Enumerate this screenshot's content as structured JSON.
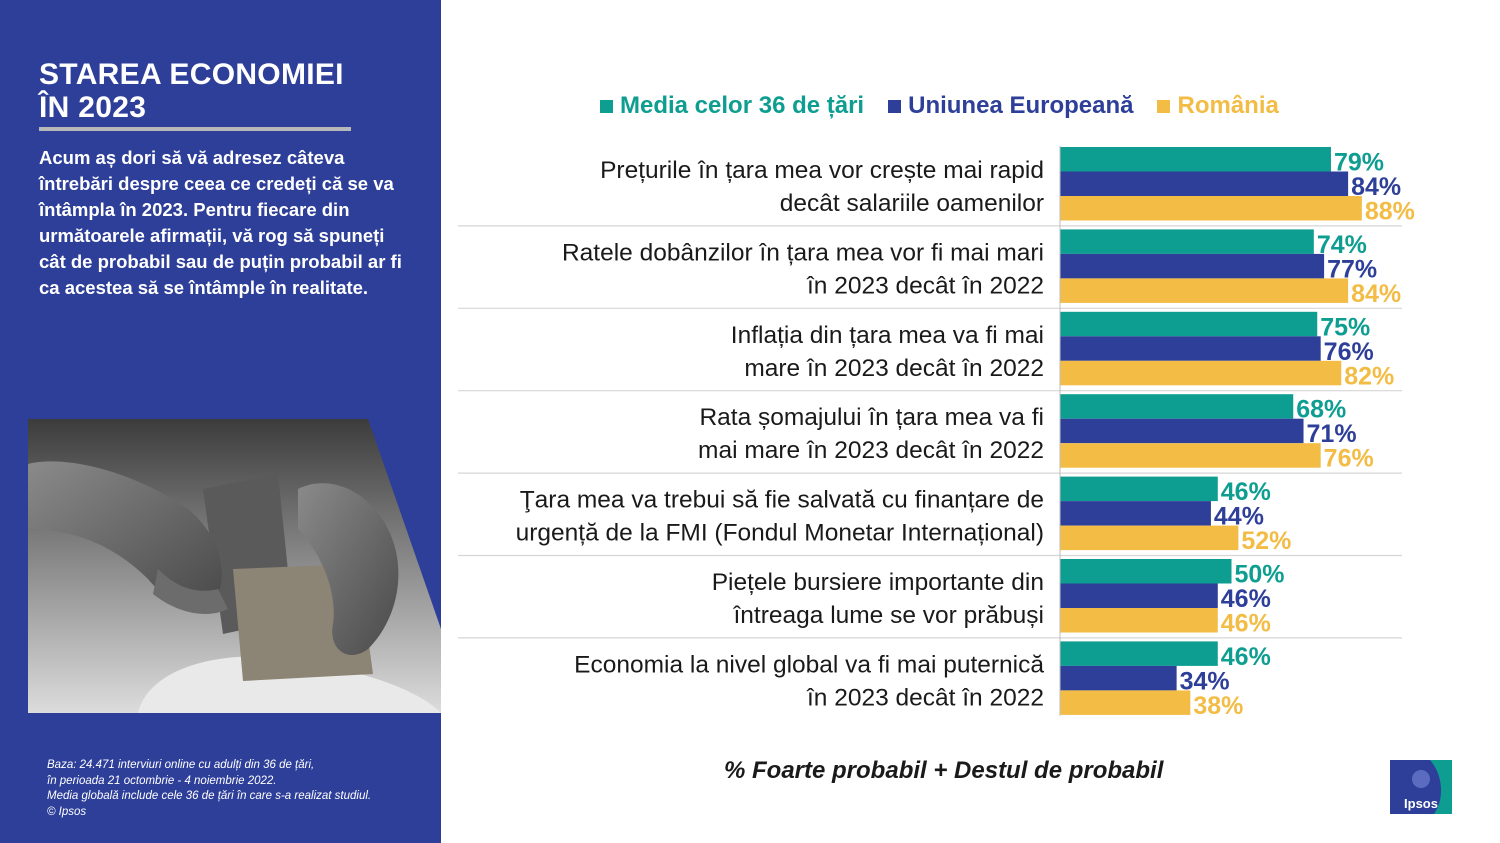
{
  "panel": {
    "title_line1": "STAREA ECONOMIEI",
    "title_line2": "ÎN 2023",
    "intro": "Acum aș dori să vă adresez câteva întrebări despre ceea ce credeți că se va întâmpla în 2023. Pentru fiecare din următoarele afirmații, vă rog să spuneți cât de probabil sau de puțin probabil ar fi ca acestea să se întâmple în realitate.",
    "footnote_line1": "Baza: 24.471 interviuri online cu adulți din 36 de țări,",
    "footnote_line2": "în perioada 21 octombrie - 4 noiembrie 2022.",
    "footnote_line3": "Media globală include cele 36 de țări în care s-a realizat studiul.",
    "footnote_line4": "© Ipsos"
  },
  "legend": [
    {
      "label": "Media celor 36 de țări",
      "color": "#0e9e91"
    },
    {
      "label": "Uniunea Europeană",
      "color": "#2e3f99"
    },
    {
      "label": "România",
      "color": "#f2bc45"
    }
  ],
  "subtitle": "% Foarte probabil + Destul de probabil",
  "logo_text": "Ipsos",
  "chart_data": {
    "type": "bar",
    "orientation": "horizontal",
    "categories": [
      [
        "Prețurile în țara mea vor crește mai rapid",
        "decât salariile oamenilor"
      ],
      [
        "Ratele dobânzilor în țara mea vor fi mai mari",
        "în 2023 decât în 2022"
      ],
      [
        "Inflația din țara mea va fi mai",
        "mare în 2023 decât în 2022"
      ],
      [
        "Rata șomajului în țara mea va fi",
        "mai mare în 2023 decât în 2022"
      ],
      [
        "Ţara mea va trebui să fie salvată cu finanțare de",
        "urgență de la FMI (Fondul Monetar Internațional)"
      ],
      [
        "Piețele bursiere importante din",
        "întreaga lume se vor prăbuși"
      ],
      [
        "Economia la nivel global va fi mai puternică",
        "în 2023 decât în 2022"
      ]
    ],
    "series": [
      {
        "name": "Media celor 36 de țări",
        "color": "#0e9e91",
        "values": [
          79,
          74,
          75,
          68,
          46,
          50,
          46
        ]
      },
      {
        "name": "Uniunea Europeană",
        "color": "#2e3f99",
        "values": [
          84,
          77,
          76,
          71,
          44,
          46,
          34
        ]
      },
      {
        "name": "România",
        "color": "#f2bc45",
        "values": [
          88,
          84,
          82,
          76,
          52,
          46,
          38
        ]
      }
    ],
    "value_suffix": "%"
  }
}
